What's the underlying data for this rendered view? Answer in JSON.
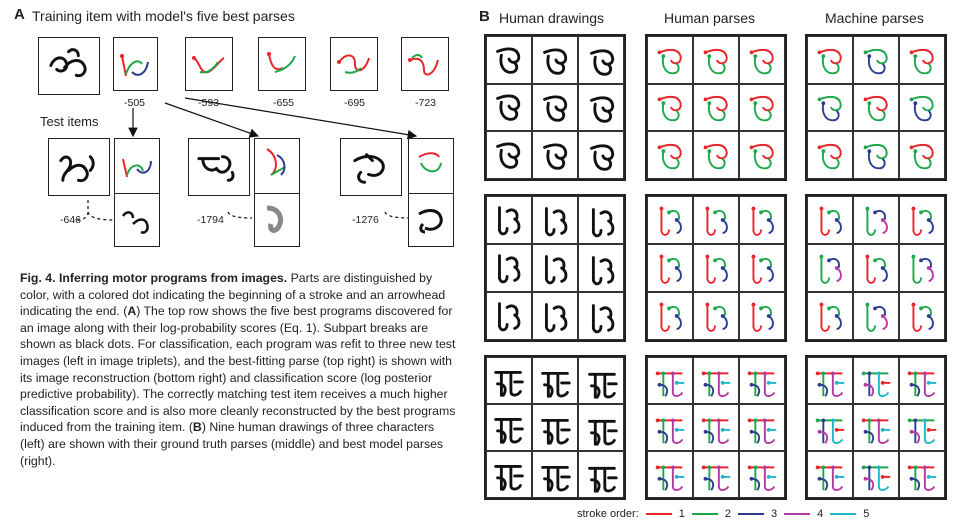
{
  "panel_a": {
    "letter": "A",
    "title": "Training item with model's five best parses",
    "scores": [
      "-505",
      "-593",
      "-655",
      "-695",
      "-723"
    ],
    "test_label": "Test items",
    "test_scores": [
      "-646",
      "-1794",
      "-1276"
    ]
  },
  "panel_b": {
    "letter": "B",
    "headers": [
      "Human drawings",
      "Human parses",
      "Machine parses"
    ]
  },
  "caption": {
    "title": "Fig. 4. Inferring motor programs from images.",
    "body": "Parts are distinguished by color, with a colored dot indicating the beginning of a stroke and an arrowhead indicating the end. (",
    "a_ref": "A",
    "body2": ") The top row shows the five best programs discovered for an image along with their log-probability scores (Eq. 1). Subpart breaks are shown as black dots. For classification, each program was refit to three new test images (left in image triplets), and the best-fitting parse (top right) is shown with its image reconstruction (bottom right) and classification score (log posterior predictive probability). The correctly matching test item receives a much higher classification score and is also more cleanly reconstructed by the best programs induced from the training item. (",
    "b_ref": "B",
    "body3": ") Nine human drawings of three characters (left) are shown with their ground truth parses (middle) and best model parses (right)."
  },
  "legend": {
    "label": "stroke order:",
    "items": [
      {
        "n": "1",
        "color": "#e8262a"
      },
      {
        "n": "2",
        "color": "#1ea84a"
      },
      {
        "n": "3",
        "color": "#2b3d8f"
      },
      {
        "n": "4",
        "color": "#b23aa3"
      },
      {
        "n": "5",
        "color": "#1fb7c9"
      }
    ]
  }
}
